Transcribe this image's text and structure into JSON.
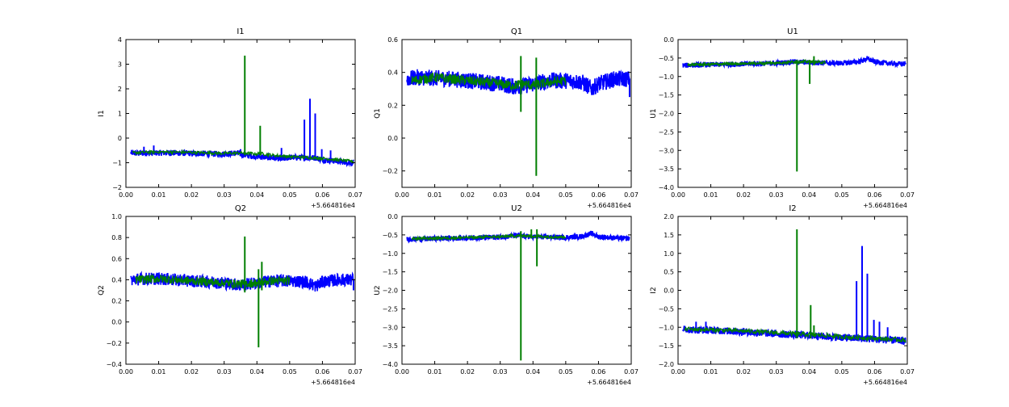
{
  "colors": {
    "background": "#ffffff",
    "series_blue": "#0000ff",
    "series_green": "#007f00",
    "axes": "#000000"
  },
  "chart_data": [
    {
      "type": "line",
      "title": "I1",
      "ylabel": "I1",
      "xlabel": "",
      "xlim": [
        0.0,
        0.07
      ],
      "ylim": [
        -2,
        4
      ],
      "xticks": [
        "0.00",
        "0.01",
        "0.02",
        "0.03",
        "0.04",
        "0.05",
        "0.06",
        "0.07"
      ],
      "yticks": [
        "−2",
        "−1",
        "0",
        "1",
        "2",
        "3",
        "4"
      ],
      "ytick_values": [
        -2,
        -1,
        0,
        1,
        2,
        3,
        4
      ],
      "offset_label": "+5.664816e4",
      "grid": false,
      "series": [
        {
          "color": "#0000ff",
          "points": [
            [
              0.0015,
              -0.6
            ],
            [
              0.005,
              -0.62
            ],
            [
              0.01,
              -0.6
            ],
            [
              0.015,
              -0.6
            ],
            [
              0.02,
              -0.62
            ],
            [
              0.025,
              -0.63
            ],
            [
              0.03,
              -0.65
            ],
            [
              0.034,
              -0.6
            ],
            [
              0.036,
              -0.7
            ],
            [
              0.04,
              -0.75
            ],
            [
              0.045,
              -0.8
            ],
            [
              0.048,
              -0.85
            ],
            [
              0.05,
              -0.78
            ],
            [
              0.055,
              -0.8
            ],
            [
              0.058,
              -0.8
            ],
            [
              0.06,
              -0.88
            ],
            [
              0.065,
              -0.95
            ],
            [
              0.0695,
              -1.0
            ]
          ],
          "band": 0.12,
          "spikes": [
            [
              0.0055,
              -0.35
            ],
            [
              0.0085,
              -0.3
            ],
            [
              0.035,
              -0.45
            ],
            [
              0.0475,
              -0.4
            ],
            [
              0.0545,
              0.75
            ],
            [
              0.0562,
              1.6
            ],
            [
              0.0578,
              1.0
            ],
            [
              0.0598,
              -0.45
            ],
            [
              0.0625,
              -0.5
            ]
          ]
        },
        {
          "color": "#007f00",
          "points": [
            [
              0.002,
              -0.6
            ],
            [
              0.005,
              -0.58
            ],
            [
              0.01,
              -0.56
            ],
            [
              0.02,
              -0.58
            ],
            [
              0.03,
              -0.62
            ],
            [
              0.036,
              -0.6
            ],
            [
              0.038,
              -0.62
            ],
            [
              0.04,
              -0.65
            ],
            [
              0.041,
              -0.62
            ],
            [
              0.045,
              -0.7
            ],
            [
              0.05,
              -0.75
            ],
            [
              0.06,
              -0.82
            ],
            [
              0.0695,
              -0.95
            ]
          ],
          "band": 0.06,
          "spikes": [
            [
              0.0363,
              3.35,
              -0.7
            ],
            [
              0.041,
              0.5,
              -0.7
            ]
          ]
        }
      ]
    },
    {
      "type": "line",
      "title": "Q1",
      "ylabel": "Q1",
      "xlabel": "",
      "xlim": [
        0.0,
        0.07
      ],
      "ylim": [
        -0.3,
        0.6
      ],
      "xticks": [
        "0.00",
        "0.01",
        "0.02",
        "0.03",
        "0.04",
        "0.05",
        "0.06",
        "0.07"
      ],
      "yticks": [
        "−0.2",
        "0.0",
        "0.2",
        "0.4",
        "0.6"
      ],
      "ytick_values": [
        -0.2,
        0.0,
        0.2,
        0.4,
        0.6
      ],
      "offset_label": "+5.664816e4",
      "grid": false,
      "series": [
        {
          "color": "#0000ff",
          "points": [
            [
              0.0015,
              0.36
            ],
            [
              0.005,
              0.37
            ],
            [
              0.01,
              0.365
            ],
            [
              0.015,
              0.36
            ],
            [
              0.02,
              0.35
            ],
            [
              0.025,
              0.34
            ],
            [
              0.03,
              0.33
            ],
            [
              0.035,
              0.31
            ],
            [
              0.04,
              0.33
            ],
            [
              0.045,
              0.35
            ],
            [
              0.05,
              0.35
            ],
            [
              0.055,
              0.34
            ],
            [
              0.058,
              0.3
            ],
            [
              0.06,
              0.33
            ],
            [
              0.065,
              0.36
            ],
            [
              0.0695,
              0.36
            ]
          ],
          "band": 0.05,
          "spikes": [
            [
              0.0695,
              0.25
            ]
          ]
        },
        {
          "color": "#007f00",
          "points": [
            [
              0.003,
              0.35
            ],
            [
              0.01,
              0.37
            ],
            [
              0.02,
              0.35
            ],
            [
              0.03,
              0.33
            ],
            [
              0.034,
              0.32
            ],
            [
              0.037,
              0.33
            ],
            [
              0.04,
              0.32
            ],
            [
              0.045,
              0.34
            ],
            [
              0.05,
              0.35
            ]
          ],
          "band": 0.03,
          "spikes": [
            [
              0.0363,
              0.5,
              0.16
            ],
            [
              0.041,
              0.49,
              -0.23
            ]
          ]
        }
      ]
    },
    {
      "type": "line",
      "title": "U1",
      "ylabel": "U1",
      "xlabel": "",
      "xlim": [
        0.0,
        0.07
      ],
      "ylim": [
        -4.0,
        0.0
      ],
      "xticks": [
        "0.00",
        "0.01",
        "0.02",
        "0.03",
        "0.04",
        "0.05",
        "0.06",
        "0.07"
      ],
      "yticks": [
        "−4.0",
        "−3.5",
        "−3.0",
        "−2.5",
        "−2.0",
        "−1.5",
        "−1.0",
        "−0.5",
        "0.0"
      ],
      "ytick_values": [
        -4.0,
        -3.5,
        -3.0,
        -2.5,
        -2.0,
        -1.5,
        -1.0,
        -0.5,
        0.0
      ],
      "offset_label": "+5.664816e4",
      "grid": false,
      "series": [
        {
          "color": "#0000ff",
          "points": [
            [
              0.0015,
              -0.7
            ],
            [
              0.01,
              -0.68
            ],
            [
              0.02,
              -0.66
            ],
            [
              0.03,
              -0.64
            ],
            [
              0.035,
              -0.6
            ],
            [
              0.04,
              -0.62
            ],
            [
              0.045,
              -0.63
            ],
            [
              0.05,
              -0.64
            ],
            [
              0.055,
              -0.6
            ],
            [
              0.058,
              -0.52
            ],
            [
              0.06,
              -0.6
            ],
            [
              0.065,
              -0.65
            ],
            [
              0.0695,
              -0.66
            ]
          ],
          "band": 0.07,
          "spikes": []
        },
        {
          "color": "#007f00",
          "points": [
            [
              0.003,
              -0.68
            ],
            [
              0.01,
              -0.67
            ],
            [
              0.02,
              -0.65
            ],
            [
              0.03,
              -0.63
            ],
            [
              0.036,
              -0.6
            ],
            [
              0.04,
              -0.6
            ],
            [
              0.045,
              -0.62
            ]
          ],
          "band": 0.04,
          "spikes": [
            [
              0.0363,
              -0.55,
              -3.57
            ],
            [
              0.0402,
              -0.55,
              -1.2
            ],
            [
              0.0415,
              -0.45,
              -0.7
            ]
          ]
        }
      ]
    },
    {
      "type": "line",
      "title": "Q2",
      "ylabel": "Q2",
      "xlabel": "",
      "xlim": [
        0.0,
        0.07
      ],
      "ylim": [
        -0.4,
        1.0
      ],
      "xticks": [
        "0.00",
        "0.01",
        "0.02",
        "0.03",
        "0.04",
        "0.05",
        "0.06",
        "0.07"
      ],
      "yticks": [
        "−0.4",
        "−0.2",
        "0.0",
        "0.2",
        "0.4",
        "0.6",
        "0.8",
        "1.0"
      ],
      "ytick_values": [
        -0.4,
        -0.2,
        0.0,
        0.2,
        0.4,
        0.6,
        0.8,
        1.0
      ],
      "offset_label": "+5.664816e4",
      "grid": false,
      "series": [
        {
          "color": "#0000ff",
          "points": [
            [
              0.0015,
              0.4
            ],
            [
              0.005,
              0.41
            ],
            [
              0.01,
              0.41
            ],
            [
              0.015,
              0.4
            ],
            [
              0.02,
              0.39
            ],
            [
              0.025,
              0.38
            ],
            [
              0.03,
              0.37
            ],
            [
              0.035,
              0.35
            ],
            [
              0.04,
              0.37
            ],
            [
              0.045,
              0.39
            ],
            [
              0.05,
              0.39
            ],
            [
              0.055,
              0.38
            ],
            [
              0.058,
              0.34
            ],
            [
              0.06,
              0.38
            ],
            [
              0.065,
              0.4
            ],
            [
              0.0695,
              0.4
            ]
          ],
          "band": 0.06,
          "spikes": [
            [
              0.0695,
              0.3
            ]
          ]
        },
        {
          "color": "#007f00",
          "points": [
            [
              0.003,
              0.4
            ],
            [
              0.01,
              0.41
            ],
            [
              0.02,
              0.39
            ],
            [
              0.03,
              0.37
            ],
            [
              0.035,
              0.36
            ],
            [
              0.04,
              0.37
            ],
            [
              0.045,
              0.39
            ],
            [
              0.05,
              0.39
            ]
          ],
          "band": 0.04,
          "spikes": [
            [
              0.0363,
              0.81,
              0.28
            ],
            [
              0.0405,
              0.5,
              -0.24
            ],
            [
              0.0415,
              0.57,
              0.3
            ]
          ]
        }
      ]
    },
    {
      "type": "line",
      "title": "U2",
      "ylabel": "U2",
      "xlabel": "",
      "xlim": [
        0.0,
        0.07
      ],
      "ylim": [
        -4.0,
        0.0
      ],
      "xticks": [
        "0.00",
        "0.01",
        "0.02",
        "0.03",
        "0.04",
        "0.05",
        "0.06",
        "0.07"
      ],
      "yticks": [
        "−4.0",
        "−3.5",
        "−3.0",
        "−2.5",
        "−2.0",
        "−1.5",
        "−1.0",
        "−0.5",
        "0.0"
      ],
      "ytick_values": [
        -4.0,
        -3.5,
        -3.0,
        -2.5,
        -2.0,
        -1.5,
        -1.0,
        -0.5,
        0.0
      ],
      "offset_label": "+5.664816e4",
      "grid": false,
      "series": [
        {
          "color": "#0000ff",
          "points": [
            [
              0.0015,
              -0.62
            ],
            [
              0.01,
              -0.6
            ],
            [
              0.02,
              -0.58
            ],
            [
              0.03,
              -0.56
            ],
            [
              0.035,
              -0.52
            ],
            [
              0.04,
              -0.55
            ],
            [
              0.045,
              -0.56
            ],
            [
              0.05,
              -0.57
            ],
            [
              0.055,
              -0.54
            ],
            [
              0.058,
              -0.46
            ],
            [
              0.06,
              -0.55
            ],
            [
              0.065,
              -0.58
            ],
            [
              0.0695,
              -0.6
            ]
          ],
          "band": 0.07,
          "spikes": []
        },
        {
          "color": "#007f00",
          "points": [
            [
              0.003,
              -0.6
            ],
            [
              0.01,
              -0.59
            ],
            [
              0.02,
              -0.57
            ],
            [
              0.03,
              -0.55
            ],
            [
              0.036,
              -0.52
            ],
            [
              0.04,
              -0.53
            ],
            [
              0.045,
              -0.55
            ],
            [
              0.05,
              -0.56
            ]
          ],
          "band": 0.04,
          "spikes": [
            [
              0.0363,
              -0.4,
              -3.9
            ],
            [
              0.0395,
              -0.35,
              -0.6
            ],
            [
              0.0412,
              -0.35,
              -1.35
            ]
          ]
        }
      ]
    },
    {
      "type": "line",
      "title": "I2",
      "ylabel": "I2",
      "xlabel": "",
      "xlim": [
        0.0,
        0.07
      ],
      "ylim": [
        -2.0,
        2.0
      ],
      "xticks": [
        "0.00",
        "0.01",
        "0.02",
        "0.03",
        "0.04",
        "0.05",
        "0.06",
        "0.07"
      ],
      "yticks": [
        "−2.0",
        "−1.5",
        "−1.0",
        "−0.5",
        "0.0",
        "0.5",
        "1.0",
        "1.5",
        "2.0"
      ],
      "ytick_values": [
        -2.0,
        -1.5,
        -1.0,
        -0.5,
        0.0,
        0.5,
        1.0,
        1.5,
        2.0
      ],
      "offset_label": "+5.664816e4",
      "grid": false,
      "series": [
        {
          "color": "#0000ff",
          "points": [
            [
              0.0015,
              -1.05
            ],
            [
              0.005,
              -1.07
            ],
            [
              0.01,
              -1.08
            ],
            [
              0.015,
              -1.1
            ],
            [
              0.02,
              -1.12
            ],
            [
              0.025,
              -1.15
            ],
            [
              0.03,
              -1.18
            ],
            [
              0.035,
              -1.2
            ],
            [
              0.04,
              -1.22
            ],
            [
              0.045,
              -1.25
            ],
            [
              0.05,
              -1.28
            ],
            [
              0.055,
              -1.3
            ],
            [
              0.06,
              -1.32
            ],
            [
              0.065,
              -1.35
            ],
            [
              0.0695,
              -1.37
            ]
          ],
          "band": 0.1,
          "spikes": [
            [
              0.0055,
              -0.85
            ],
            [
              0.0085,
              -0.85
            ],
            [
              0.0545,
              0.25
            ],
            [
              0.0562,
              1.2
            ],
            [
              0.0578,
              0.45
            ],
            [
              0.0598,
              -0.8
            ],
            [
              0.0615,
              -0.85
            ],
            [
              0.064,
              -1.0
            ]
          ]
        },
        {
          "color": "#007f00",
          "points": [
            [
              0.002,
              -1.05
            ],
            [
              0.01,
              -1.07
            ],
            [
              0.02,
              -1.1
            ],
            [
              0.03,
              -1.15
            ],
            [
              0.036,
              -1.18
            ],
            [
              0.04,
              -1.2
            ],
            [
              0.045,
              -1.22
            ],
            [
              0.05,
              -1.26
            ],
            [
              0.06,
              -1.3
            ],
            [
              0.0695,
              -1.35
            ]
          ],
          "band": 0.06,
          "spikes": [
            [
              0.0363,
              1.65,
              -1.3
            ],
            [
              0.0405,
              -0.4,
              -1.3
            ],
            [
              0.0415,
              -0.95,
              -1.25
            ]
          ]
        }
      ]
    }
  ]
}
